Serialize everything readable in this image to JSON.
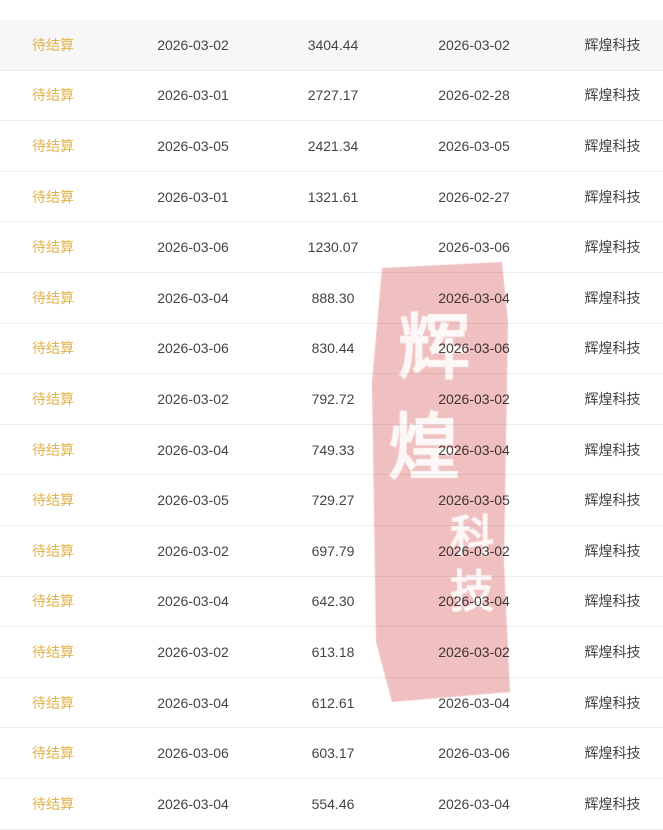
{
  "rows": [
    {
      "status": "待结算",
      "date": "2026-03-02",
      "amount": "3404.44",
      "date2": "2026-03-02",
      "company": "辉煌科技"
    },
    {
      "status": "待结算",
      "date": "2026-03-01",
      "amount": "2727.17",
      "date2": "2026-02-28",
      "company": "辉煌科技"
    },
    {
      "status": "待结算",
      "date": "2026-03-05",
      "amount": "2421.34",
      "date2": "2026-03-05",
      "company": "辉煌科技"
    },
    {
      "status": "待结算",
      "date": "2026-03-01",
      "amount": "1321.61",
      "date2": "2026-02-27",
      "company": "辉煌科技"
    },
    {
      "status": "待结算",
      "date": "2026-03-06",
      "amount": "1230.07",
      "date2": "2026-03-06",
      "company": "辉煌科技"
    },
    {
      "status": "待结算",
      "date": "2026-03-04",
      "amount": "888.30",
      "date2": "2026-03-04",
      "company": "辉煌科技"
    },
    {
      "status": "待结算",
      "date": "2026-03-06",
      "amount": "830.44",
      "date2": "2026-03-06",
      "company": "辉煌科技"
    },
    {
      "status": "待结算",
      "date": "2026-03-02",
      "amount": "792.72",
      "date2": "2026-03-02",
      "company": "辉煌科技"
    },
    {
      "status": "待结算",
      "date": "2026-03-04",
      "amount": "749.33",
      "date2": "2026-03-04",
      "company": "辉煌科技"
    },
    {
      "status": "待结算",
      "date": "2026-03-05",
      "amount": "729.27",
      "date2": "2026-03-05",
      "company": "辉煌科技"
    },
    {
      "status": "待结算",
      "date": "2026-03-02",
      "amount": "697.79",
      "date2": "2026-03-02",
      "company": "辉煌科技"
    },
    {
      "status": "待结算",
      "date": "2026-03-04",
      "amount": "642.30",
      "date2": "2026-03-04",
      "company": "辉煌科技"
    },
    {
      "status": "待结算",
      "date": "2026-03-02",
      "amount": "613.18",
      "date2": "2026-03-02",
      "company": "辉煌科技"
    },
    {
      "status": "待结算",
      "date": "2026-03-04",
      "amount": "612.61",
      "date2": "2026-03-04",
      "company": "辉煌科技"
    },
    {
      "status": "待结算",
      "date": "2026-03-06",
      "amount": "603.17",
      "date2": "2026-03-06",
      "company": "辉煌科技"
    },
    {
      "status": "待结算",
      "date": "2026-03-04",
      "amount": "554.46",
      "date2": "2026-03-04",
      "company": "辉煌科技"
    }
  ],
  "seal": {
    "text": "辉煌科技",
    "color": "#e79a9a"
  },
  "colors": {
    "status": "#e2b24a",
    "text": "#444444"
  }
}
